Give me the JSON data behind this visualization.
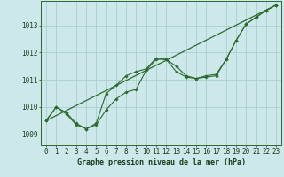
{
  "background_color": "#cce8ea",
  "grid_color": "#aacfcf",
  "line_color": "#2d6a2d",
  "title": "Graphe pression niveau de la mer (hPa)",
  "xlim": [
    -0.5,
    23.5
  ],
  "ylim": [
    1008.6,
    1013.9
  ],
  "yticks": [
    1009,
    1010,
    1011,
    1012,
    1013
  ],
  "xticks": [
    0,
    1,
    2,
    3,
    4,
    5,
    6,
    7,
    8,
    9,
    10,
    11,
    12,
    13,
    14,
    15,
    16,
    17,
    18,
    19,
    20,
    21,
    22,
    23
  ],
  "series1_x": [
    0,
    1,
    2,
    3,
    4,
    5,
    6,
    7,
    8,
    9,
    10,
    11,
    12,
    13,
    14,
    15,
    16,
    17,
    18,
    19,
    20,
    21,
    22,
    23
  ],
  "series1_y": [
    1009.5,
    1010.0,
    1009.8,
    1009.4,
    1009.2,
    1009.35,
    1009.9,
    1010.3,
    1010.55,
    1010.65,
    1011.35,
    1011.75,
    1011.75,
    1011.5,
    1011.15,
    1011.05,
    1011.15,
    1011.2,
    1011.75,
    1012.45,
    1013.05,
    1013.3,
    1013.55,
    1013.75
  ],
  "series2_x": [
    0,
    1,
    2,
    3,
    4,
    5,
    6,
    7,
    8,
    9,
    10,
    11,
    12,
    13,
    14,
    15,
    16,
    17,
    18,
    19,
    20,
    21,
    22,
    23
  ],
  "series2_y": [
    1009.5,
    1010.0,
    1009.75,
    1009.35,
    1009.2,
    1009.4,
    1010.5,
    1010.8,
    1011.15,
    1011.3,
    1011.4,
    1011.8,
    1011.75,
    1011.3,
    1011.1,
    1011.05,
    1011.1,
    1011.15,
    1011.75,
    1012.45,
    1013.05,
    1013.3,
    1013.55,
    1013.75
  ],
  "trend_x": [
    0,
    23
  ],
  "trend_y": [
    1009.5,
    1013.75
  ],
  "title_fontsize": 6.0,
  "tick_fontsize": 5.5
}
